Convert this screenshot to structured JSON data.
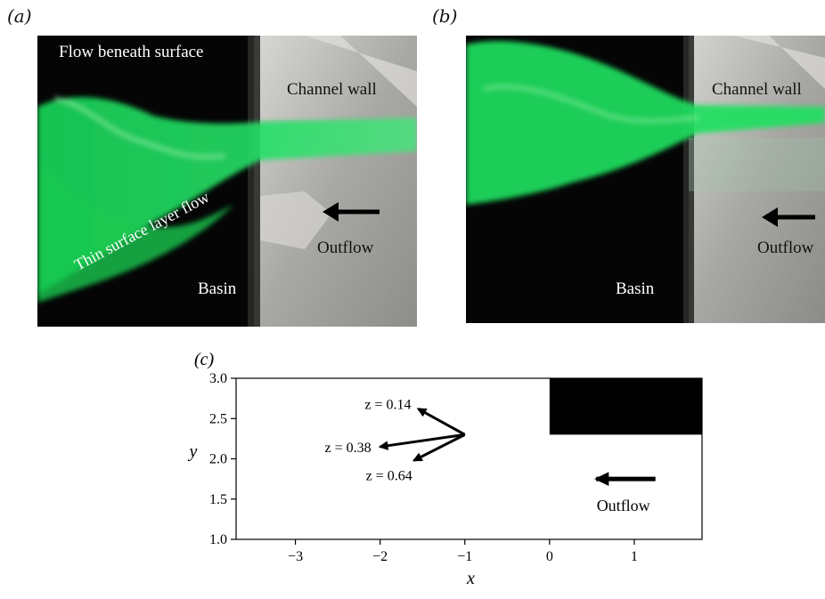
{
  "panels": {
    "a": {
      "label": "(a)",
      "flow_beneath": "Flow beneath surface",
      "channel_wall": "Channel wall",
      "outflow": "Outflow",
      "thin_layer": "Thin surface layer flow",
      "basin": "Basin"
    },
    "b": {
      "label": "(b)",
      "channel_wall": "Channel wall",
      "outflow": "Outflow",
      "basin": "Basin"
    },
    "c": {
      "label": "(c)",
      "annotations": [
        "z = 0.14",
        "z = 0.38",
        "z = 0.64"
      ],
      "outflow": "Outflow"
    }
  },
  "colors": {
    "dye": "#1fe060",
    "basin": "#050505",
    "wall": "#b9b9b6"
  },
  "chart_data": {
    "type": "diagram",
    "xlabel": "x",
    "ylabel": "y",
    "xlim": [
      -3.7,
      1.8
    ],
    "ylim": [
      1.0,
      3.0
    ],
    "xticks": [
      -3,
      -2,
      -1,
      0,
      1
    ],
    "xtick_labels": [
      "−3",
      "−2",
      "−1",
      "0",
      "1"
    ],
    "yticks": [
      1.0,
      1.5,
      2.0,
      2.5,
      3.0
    ],
    "ytick_labels": [
      "1.0",
      "1.5",
      "2.0",
      "2.5",
      "3.0"
    ],
    "channel_wall_block": {
      "x": [
        0,
        1.8
      ],
      "y": [
        2.3,
        3.0
      ]
    },
    "arrows": [
      {
        "label": "z = 0.14",
        "from": [
          -1.0,
          2.3
        ],
        "to": [
          -1.55,
          2.62
        ]
      },
      {
        "label": "z = 0.38",
        "from": [
          -1.0,
          2.3
        ],
        "to": [
          -2.0,
          2.15
        ]
      },
      {
        "label": "z = 0.64",
        "from": [
          -1.0,
          2.3
        ],
        "to": [
          -1.6,
          1.98
        ]
      }
    ],
    "outflow_arrow": {
      "from": [
        1.25,
        1.75
      ],
      "to": [
        0.55,
        1.75
      ]
    }
  }
}
